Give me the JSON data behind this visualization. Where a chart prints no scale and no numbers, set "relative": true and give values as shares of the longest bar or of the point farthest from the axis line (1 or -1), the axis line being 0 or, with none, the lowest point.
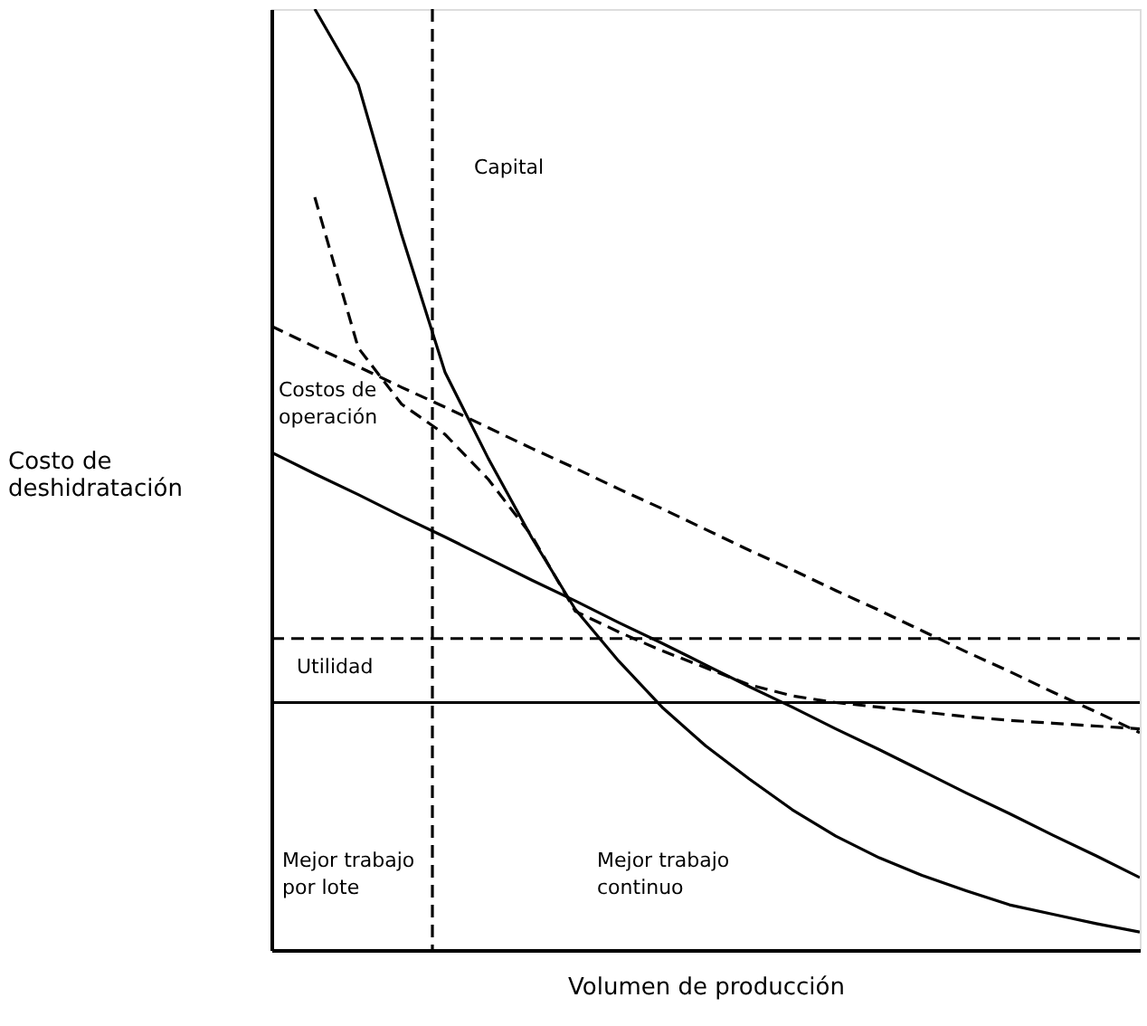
{
  "chart_data": {
    "type": "line",
    "relative": true,
    "xlabel": "Volumen de producción",
    "ylabel": "Costo de deshidratación",
    "categories": [
      null,
      null,
      null,
      null,
      null,
      null,
      null,
      null,
      null,
      null,
      null,
      null,
      null,
      null,
      null,
      null,
      null,
      null,
      null,
      null,
      null
    ],
    "series": [
      {
        "color": "#000000",
        "line_style": "solid",
        "values": [
          null,
          1.0,
          0.92,
          0.76,
          0.614,
          0.522,
          0.438,
          0.362,
          0.307,
          0.258,
          0.217,
          0.182,
          0.149,
          0.121,
          0.098,
          0.079,
          0.063,
          0.048,
          0.038,
          0.028,
          0.019
        ]
      },
      {
        "color": "#000000",
        "line_style": "solid",
        "values": [
          0.529,
          0.506,
          0.484,
          0.461,
          0.439,
          0.416,
          0.393,
          0.371,
          0.348,
          0.326,
          0.303,
          0.28,
          0.258,
          0.235,
          0.213,
          0.19,
          0.167,
          0.145,
          0.122,
          0.1,
          0.077
        ]
      },
      {
        "color": "#000000",
        "line_style": "dashed",
        "values": [
          0.663,
          0.641,
          0.62,
          0.598,
          0.577,
          0.555,
          0.533,
          0.512,
          0.49,
          0.469,
          0.447,
          0.425,
          0.404,
          0.382,
          0.361,
          0.339,
          0.317,
          0.296,
          0.274,
          0.253,
          0.231
        ]
      },
      {
        "color": "#000000",
        "line_style": "dashed",
        "values": [
          null,
          0.8,
          0.64,
          0.58,
          0.548,
          0.5,
          0.44,
          0.36,
          0.338,
          0.318,
          0.3,
          0.282,
          0.27,
          0.263,
          0.258,
          0.253,
          0.248,
          0.244,
          0.241,
          0.238,
          0.235
        ]
      }
    ],
    "ref_lines": [
      {
        "axis": "y",
        "value": 0.331,
        "line_style": "dashed",
        "color": "#000000"
      },
      {
        "axis": "y",
        "value": 0.263,
        "line_style": "solid",
        "color": "#000000"
      }
    ],
    "annotations": [
      "Capital",
      "Costos de operación",
      "Utilidad",
      "Mejor trabajo por lote",
      "Mejor trabajo continuo"
    ]
  }
}
